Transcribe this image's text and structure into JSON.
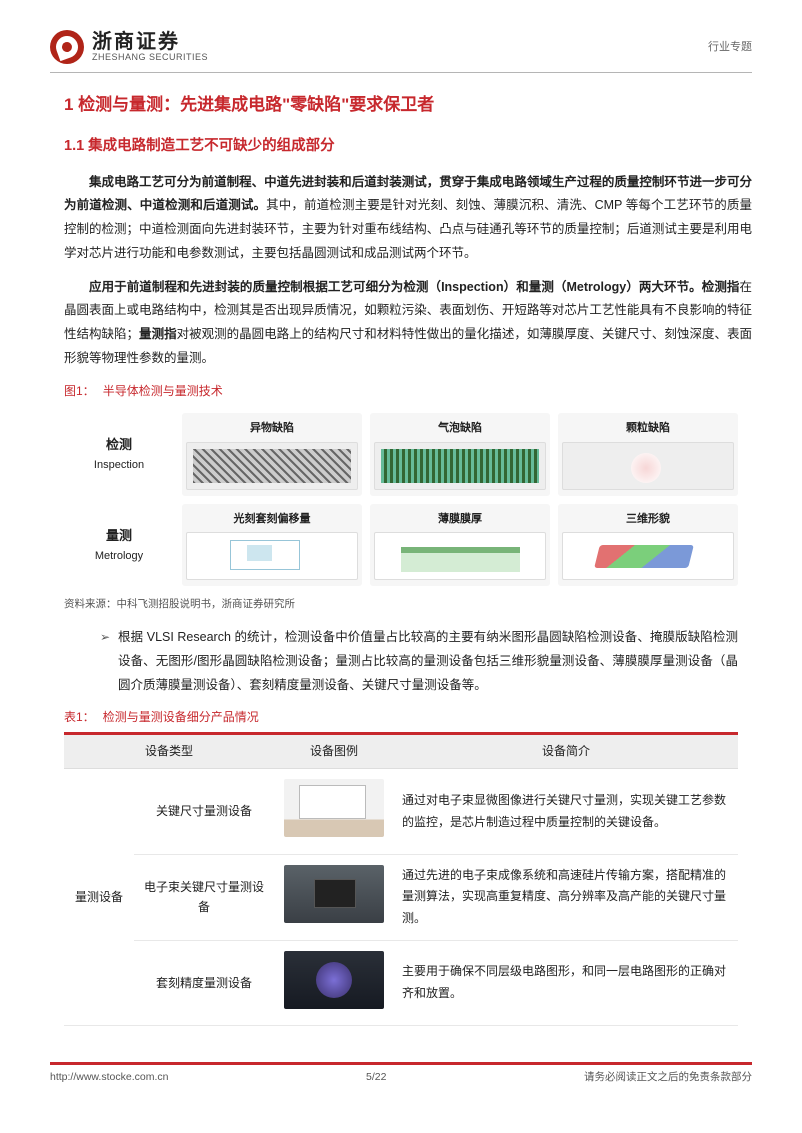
{
  "header": {
    "company_cn": "浙商证券",
    "company_en": "ZHESHANG SECURITIES",
    "doc_type": "行业专题"
  },
  "h1": "1 检测与量测：先进集成电路\"零缺陷\"要求保卫者",
  "h2": "1.1 集成电路制造工艺不可缺少的组成部分",
  "para1_bold": "集成电路工艺可分为前道制程、中道先进封装和后道封装测试，贯穿于集成电路领域生产过程的质量控制环节进一步可分为前道检测、中道检测和后道测试。",
  "para1_rest": "其中，前道检测主要是针对光刻、刻蚀、薄膜沉积、清洗、CMP 等每个工艺环节的质量控制的检测；中道检测面向先进封装环节，主要为针对重布线结构、凸点与硅通孔等环节的质量控制；后道测试主要是利用电学对芯片进行功能和电参数测试，主要包括晶圆测试和成品测试两个环节。",
  "para2_bold1": "应用于前道制程和先进封装的质量控制根据工艺可细分为检测（Inspection）和量测（Metrology）两大环节。检测指",
  "para2_mid": "在晶圆表面上或电路结构中，检测其是否出现异质情况，如颗粒污染、表面划伤、开短路等对芯片工艺性能具有不良影响的特征性结构缺陷；",
  "para2_bold2": "量测指",
  "para2_end": "对被观测的晶圆电路上的结构尺寸和材料特性做出的量化描述，如薄膜厚度、关键尺寸、刻蚀深度、表面形貌等物理性参数的量测。",
  "fig1": {
    "prefix": "图1：",
    "title": "半导体检测与量测技术",
    "row1_label_cn": "检测",
    "row1_label_en": "Inspection",
    "row2_label_cn": "量测",
    "row2_label_en": "Metrology",
    "cells": {
      "c1": "异物缺陷",
      "c2": "气泡缺陷",
      "c3": "颗粒缺陷",
      "c4": "光刻套刻偏移量",
      "c5": "薄膜膜厚",
      "c6": "三维形貌"
    },
    "source": "资料来源：中科飞测招股说明书，浙商证券研究所"
  },
  "bullet": "根据 VLSI Research 的统计，检测设备中价值量占比较高的主要有纳米图形晶圆缺陷检测设备、掩膜版缺陷检测设备、无图形/图形晶圆缺陷检测设备；量测占比较高的量测设备包括三维形貌量测设备、薄膜膜厚量测设备（晶圆介质薄膜量测设备）、套刻精度量测设备、关键尺寸量测设备等。",
  "table1": {
    "prefix": "表1：",
    "title": "检测与量测设备细分产品情况",
    "headers": {
      "h1": "设备类型",
      "h2": "设备图例",
      "h3": "设备简介"
    },
    "type_label": "量测设备",
    "rows": [
      {
        "name": "关键尺寸量测设备",
        "desc": "通过对电子束显微图像进行关键尺寸量测，实现关键工艺参数的监控，是芯片制造过程中质量控制的关键设备。"
      },
      {
        "name": "电子束关键尺寸量测设备",
        "desc": "通过先进的电子束成像系统和高速硅片传输方案，搭配精准的量测算法，实现高重复精度、高分辨率及高产能的关键尺寸量测。"
      },
      {
        "name": "套刻精度量测设备",
        "desc": "主要用于确保不同层级电路图形，和同一层电路图形的正确对齐和放置。"
      }
    ]
  },
  "footer": {
    "url": "http://www.stocke.com.cn",
    "page": "5/22",
    "disclaimer": "请务必阅读正文之后的免责条款部分"
  }
}
